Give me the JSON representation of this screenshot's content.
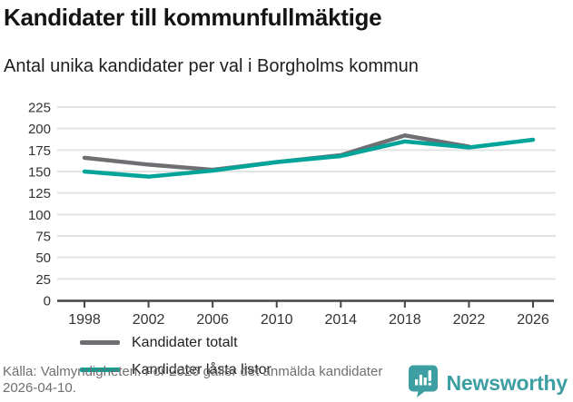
{
  "header": {
    "title": "Kandidater till kommunfullmäktige",
    "subtitle": "Antal unika kandidater per val i Borgholms kommun"
  },
  "chart_data": {
    "type": "line",
    "title": "Kandidater till kommunfullmäktige",
    "subtitle": "Antal unika kandidater per val i Borgholms kommun",
    "x": [
      1998,
      2002,
      2006,
      2010,
      2014,
      2018,
      2022,
      2026
    ],
    "series": [
      {
        "name": "Kandidater totalt",
        "color": "#6e6e73",
        "values": [
          166,
          158,
          152,
          161,
          169,
          192,
          179,
          null
        ]
      },
      {
        "name": "Kandidater låsta listor",
        "color": "#00a499",
        "values": [
          150,
          144,
          151,
          161,
          168,
          185,
          178,
          187
        ]
      }
    ],
    "xlabel": "",
    "ylabel": "",
    "ylim": [
      0,
      237
    ],
    "yticks": [
      0,
      25,
      50,
      75,
      100,
      125,
      150,
      175,
      200,
      225
    ],
    "grid": true,
    "legend_position": "inside-left-bottom"
  },
  "footer": {
    "source": "Källa: Valmyndigheten. För 2026 gäller det anmälda kandidater 2026-04-10.",
    "brand": "Newsworthy"
  },
  "colors": {
    "series_total": "#6e6e73",
    "series_locked": "#00a499",
    "gridline": "#e3e3e3",
    "axis": "#444444",
    "tick_label": "#333333",
    "footer_text": "#6f6f6f",
    "brand_teal": "#3d9fa2"
  }
}
